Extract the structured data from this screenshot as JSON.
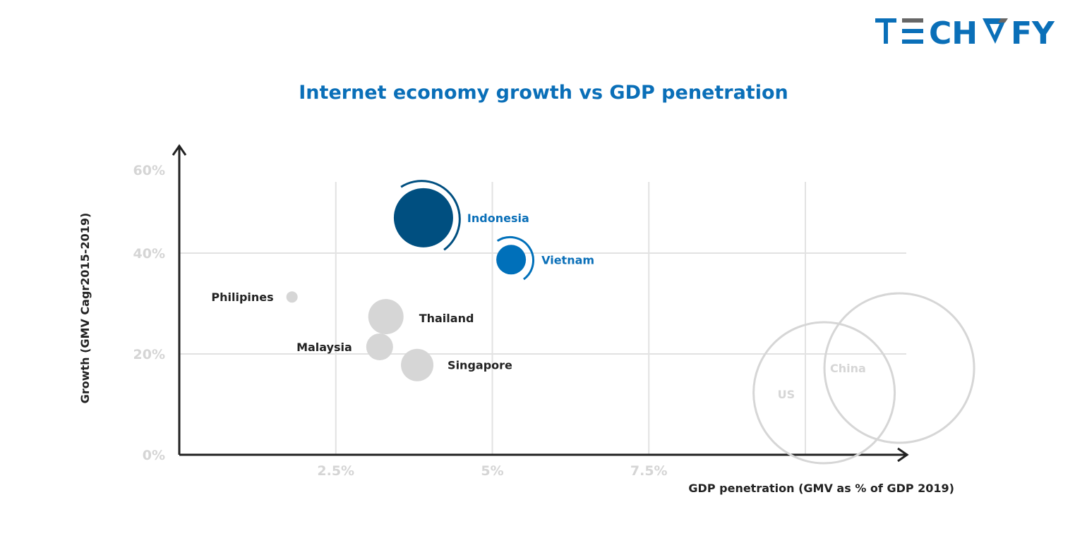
{
  "logo": {
    "text": "TECHVFY",
    "colors": {
      "primary": "#0A6FB8",
      "accent": "#666666"
    }
  },
  "chart_data": {
    "type": "scatter",
    "subtype": "bubble",
    "title": "Internet economy growth vs GDP penetration",
    "xlabel": "GDP penetration (GMV as % of GDP 2019)",
    "ylabel": "Growth (GMV Cagr2015-2019)",
    "xlim": [
      0,
      11.5
    ],
    "ylim": [
      0,
      60
    ],
    "x_ticks": [
      {
        "value": 2.5,
        "label": "2.5%"
      },
      {
        "value": 5,
        "label": "5%"
      },
      {
        "value": 7.5,
        "label": "7.5%"
      },
      {
        "value": 10,
        "label": ""
      }
    ],
    "y_ticks": [
      {
        "value": 0,
        "label": "0%"
      },
      {
        "value": 20,
        "label": "20%"
      },
      {
        "value": 40,
        "label": "40%"
      },
      {
        "value": 60,
        "label": "60%"
      }
    ],
    "grid": true,
    "points": [
      {
        "name": "Indonesia",
        "x": 3.9,
        "y": 48.5,
        "size": 42,
        "color": "#004F80",
        "label_color": "#0A6FB8",
        "highlight": true
      },
      {
        "name": "Vietnam",
        "x": 5.3,
        "y": 38.7,
        "size": 21,
        "color": "#0070BA",
        "label_color": "#0A6FB8",
        "highlight": true
      },
      {
        "name": "Philipines",
        "x": 1.8,
        "y": 31.3,
        "size": 8,
        "color": "#D6D6D6",
        "label_color": "#222222"
      },
      {
        "name": "Thailand",
        "x": 3.3,
        "y": 27.4,
        "size": 25,
        "color": "#D6D6D6",
        "label_color": "#222222"
      },
      {
        "name": "Malaysia",
        "x": 3.2,
        "y": 21.4,
        "size": 19,
        "color": "#D6D6D6",
        "label_color": "#222222"
      },
      {
        "name": "Singapore",
        "x": 3.8,
        "y": 17.8,
        "size": 23,
        "color": "#D6D6D6",
        "label_color": "#222222"
      },
      {
        "name": "US",
        "x": 10.3,
        "y": 12.3,
        "size": 100,
        "color": "#D6D6D6",
        "label_color": "#D6D6D6",
        "outline": true
      },
      {
        "name": "China",
        "x": 11.5,
        "y": 17.2,
        "size": 106,
        "color": "#D6D6D6",
        "label_color": "#D6D6D6",
        "outline": true
      }
    ]
  }
}
